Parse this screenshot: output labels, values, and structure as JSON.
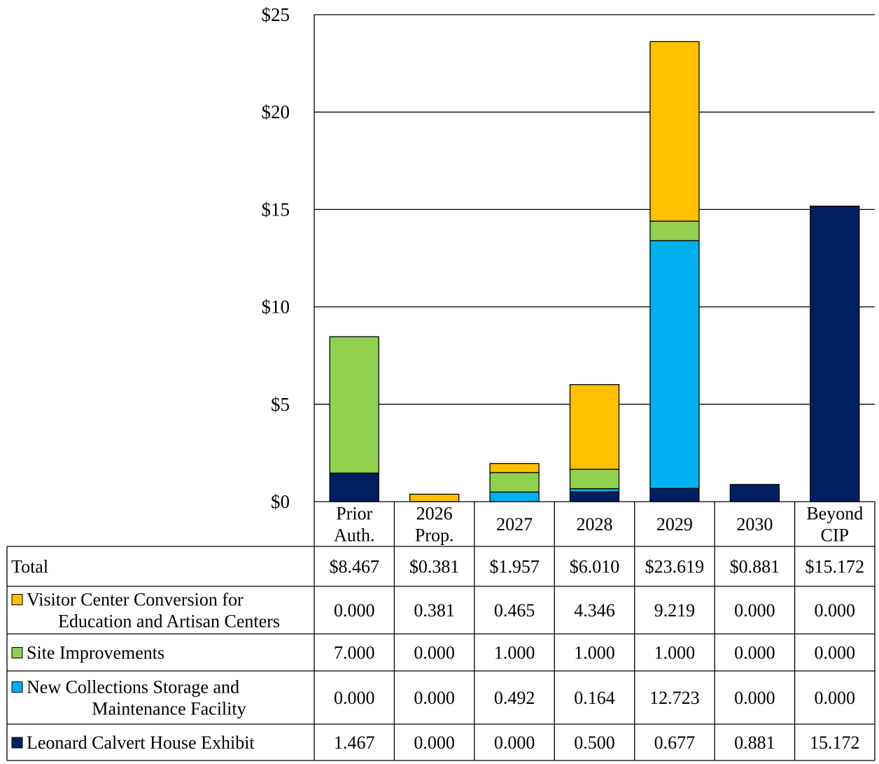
{
  "chart_data": {
    "type": "bar",
    "stacked": true,
    "categories": [
      "Prior Auth.",
      "2026 Prop.",
      "2027",
      "2028",
      "2029",
      "2030",
      "Beyond CIP"
    ],
    "category_lines": [
      [
        "Prior",
        "Auth."
      ],
      [
        "2026",
        "Prop."
      ],
      [
        "2027"
      ],
      [
        "2028"
      ],
      [
        "2029"
      ],
      [
        "2030"
      ],
      [
        "Beyond",
        "CIP"
      ]
    ],
    "ylim": [
      0,
      25
    ],
    "yticks": [
      0,
      5,
      10,
      15,
      20,
      25
    ],
    "ytick_labels": [
      "$0",
      "$5",
      "$10",
      "$15",
      "$20",
      "$25"
    ],
    "grid": true,
    "legend_placement": "table-rows",
    "series": [
      {
        "name": "Leonard Calvert House Exhibit",
        "label_lines": [
          "Leonard Calvert House Exhibit"
        ],
        "color": "#002060",
        "values": [
          1.467,
          0.0,
          0.0,
          0.5,
          0.677,
          0.881,
          15.172
        ],
        "value_labels": [
          "1.467",
          "0.000",
          "0.000",
          "0.500",
          "0.677",
          "0.881",
          "15.172"
        ]
      },
      {
        "name": "New Collections Storage and Maintenance Facility",
        "label_lines": [
          "New Collections Storage and",
          "Maintenance Facility"
        ],
        "color": "#00B0F0",
        "values": [
          0.0,
          0.0,
          0.492,
          0.164,
          12.723,
          0.0,
          0.0
        ],
        "value_labels": [
          "0.000",
          "0.000",
          "0.492",
          "0.164",
          "12.723",
          "0.000",
          "0.000"
        ]
      },
      {
        "name": "Site Improvements",
        "label_lines": [
          "Site Improvements"
        ],
        "color": "#92D050",
        "values": [
          7.0,
          0.0,
          1.0,
          1.0,
          1.0,
          0.0,
          0.0
        ],
        "value_labels": [
          "7.000",
          "0.000",
          "1.000",
          "1.000",
          "1.000",
          "0.000",
          "0.000"
        ]
      },
      {
        "name": "Visitor Center Conversion for Education and Artisan Centers",
        "label_lines": [
          "Visitor Center Conversion for",
          "Education and Artisan Centers"
        ],
        "color": "#FFC000",
        "values": [
          0.0,
          0.381,
          0.465,
          4.346,
          9.219,
          0.0,
          0.0
        ],
        "value_labels": [
          "0.000",
          "0.381",
          "0.465",
          "4.346",
          "9.219",
          "0.000",
          "0.000"
        ]
      }
    ],
    "table_row_order": [
      3,
      2,
      1,
      0
    ],
    "totals": {
      "label": "Total",
      "values": [
        "$8.467",
        "$0.381",
        "$1.957",
        "$6.010",
        "$23.619",
        "$0.881",
        "$15.172"
      ]
    }
  }
}
